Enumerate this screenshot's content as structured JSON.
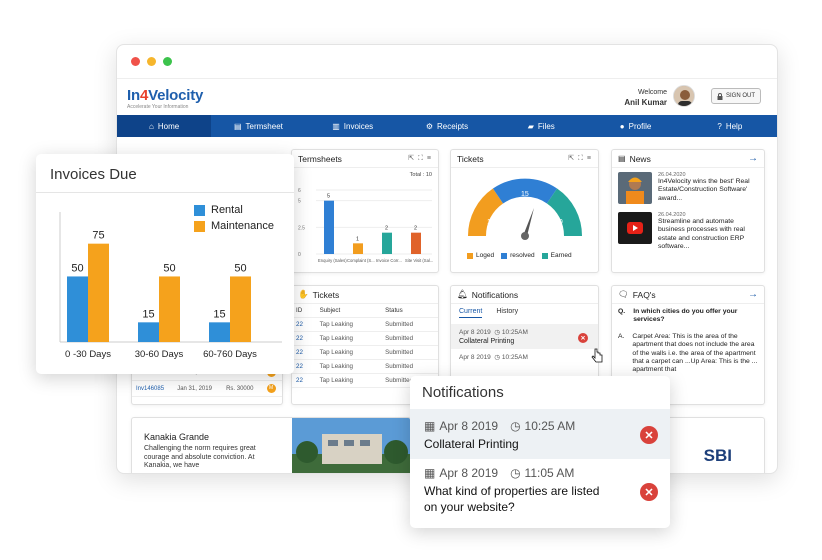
{
  "app": {
    "logo_a": "In",
    "logo_b": "4",
    "logo_c": "Velocity",
    "tagline": "Accelerate Your Information",
    "welcome": "Welcome",
    "user_name": "Anil Kumar",
    "sign_out": "SIGN OUT"
  },
  "nav": [
    {
      "label": "Home",
      "icon": "home-icon"
    },
    {
      "label": "Termsheet",
      "icon": "document-icon"
    },
    {
      "label": "Invoices",
      "icon": "invoice-icon"
    },
    {
      "label": "Receipts",
      "icon": "receipt-icon"
    },
    {
      "label": "Files",
      "icon": "folder-icon"
    },
    {
      "label": "Profile",
      "icon": "user-icon"
    },
    {
      "label": "Help",
      "icon": "help-icon"
    }
  ],
  "termsheets": {
    "title": "Termsheets",
    "total": "Total : 10",
    "y_ticks": [
      "6",
      "5",
      "2.5",
      "0"
    ],
    "values": [
      5,
      1,
      2,
      2
    ],
    "value_labels": [
      "5",
      "1",
      "2",
      "2"
    ],
    "colors": [
      "#2f7fd4",
      "#f29d1f",
      "#26a69a",
      "#e0632a"
    ],
    "categories": [
      "Enquiry (Sales)",
      "Complaint (S...",
      "Invoice Corr...",
      "Site Visit (Sal..."
    ]
  },
  "tickets_gauge": {
    "title": "Tickets",
    "values": [
      "10",
      "15",
      "10"
    ],
    "legend": [
      "Loged",
      "resolved",
      "Earned"
    ],
    "colors": [
      "#f29d1f",
      "#2f7fd4",
      "#26a69a"
    ]
  },
  "news": {
    "title": "News",
    "items": [
      {
        "date": "26.04.2020",
        "text": "In4Velocity wins the best' Real  Estate/Construction Software' award..."
      },
      {
        "date": "26.04.2020",
        "text": "Streamline and automate business processes with real estate and construction ERP software..."
      }
    ]
  },
  "tickets_table": {
    "title": "Tickets",
    "headers": [
      "ID",
      "Subject",
      "Status"
    ],
    "rows": [
      [
        "22",
        "Tap Leaking",
        "Submitted"
      ],
      [
        "22",
        "Tap Leaking",
        "Submitted"
      ],
      [
        "22",
        "Tap Leaking",
        "Submitted"
      ],
      [
        "22",
        "Tap Leaking",
        "Submitted"
      ],
      [
        "22",
        "Tap Leaking",
        "Submitted"
      ]
    ]
  },
  "notifications_small": {
    "title": "Notifications",
    "tabs": [
      "Current",
      "History"
    ],
    "items": [
      {
        "date": "Apr 8 2019",
        "time": "10:25AM",
        "text": "Collateral Printing"
      },
      {
        "date": "Apr 8 2019",
        "time": "10:25AM",
        "text": ""
      }
    ]
  },
  "faq": {
    "title": "FAQ's",
    "q_label": "Q.",
    "a_label": "A.",
    "question": "In which cities do you offer your services?",
    "answer": "Carpet Area: This is the area of the apartment that does not include the area of the walls i.e. the area of the apartment that a carpet can ...Up Area: This is the ... apartment that"
  },
  "invoice_list": [
    {
      "id": "Inv146085",
      "date": "Jan 31, 2019",
      "amount": "Rs. 30000"
    },
    {
      "id": "Inv146085",
      "date": "Jan 31, 2019",
      "amount": "Rs. 30000"
    }
  ],
  "project": {
    "name": "Kanakia Grande",
    "desc": "Challenging the norm requires great courage and absolute conviction. At Kanakia, we have"
  },
  "bank_logo": "SBI",
  "invoices_due": {
    "title": "Invoices Due",
    "legend": [
      "Rental",
      "Maintenance"
    ],
    "colors": [
      "#2f8fd8",
      "#f5a21c"
    ]
  },
  "chart_data": {
    "type": "bar",
    "title": "Invoices Due",
    "categories": [
      "0 -30 Days",
      "30-60 Days",
      "60-760 Days"
    ],
    "series": [
      {
        "name": "Rental",
        "values": [
          50,
          15,
          15
        ]
      },
      {
        "name": "Maintenance",
        "values": [
          75,
          50,
          50
        ]
      }
    ],
    "ylim": [
      0,
      90
    ]
  },
  "notifications_card": {
    "title": "Notifications",
    "items": [
      {
        "date": "Apr 8 2019",
        "time": "10:25 AM",
        "text": "Collateral Printing"
      },
      {
        "date": "Apr 8 2019",
        "time": "11:05 AM",
        "text": "What kind of properties are listed on your website?"
      }
    ]
  }
}
